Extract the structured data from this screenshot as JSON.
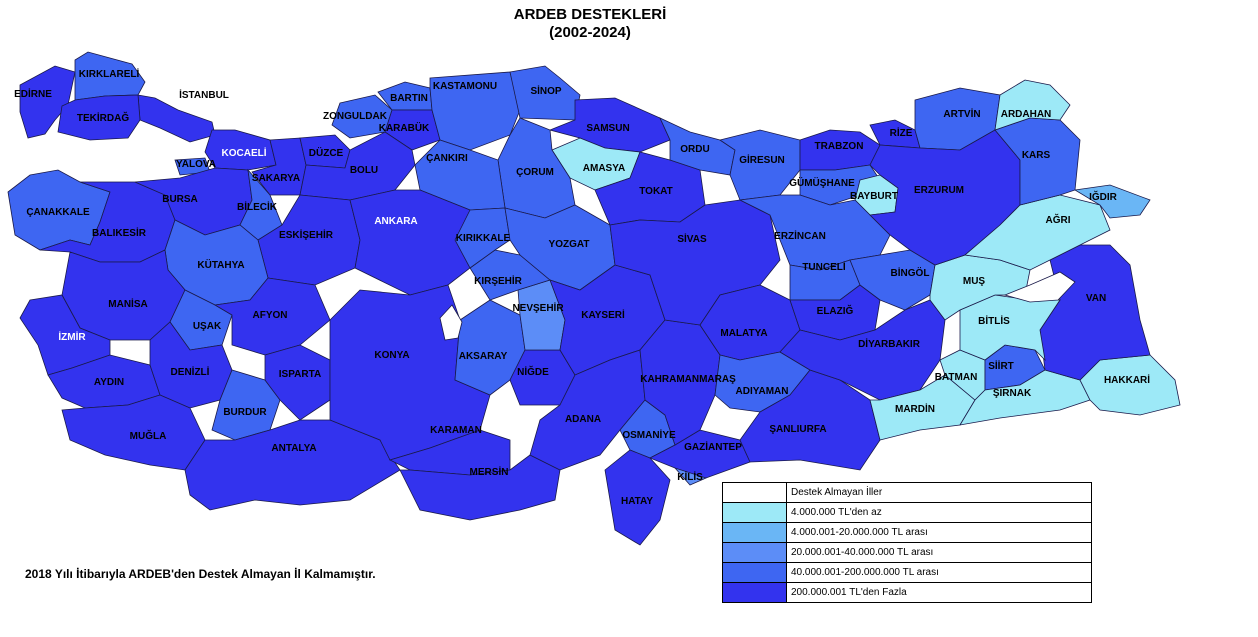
{
  "title": "ARDEB DESTEKLERİ",
  "subtitle": "(2002-2024)",
  "footnote": "2018 Yılı İtibarıyla ARDEB'den Destek Almayan İl Kalmamıştır.",
  "colors": {
    "none": "#ffffff",
    "c1": "#9de9f7",
    "c2": "#6ab6f5",
    "c3": "#5c8df7",
    "c4": "#3e66f2",
    "c5": "#3333ee",
    "border": "#1a1a4a"
  },
  "legend": [
    {
      "class": "none",
      "label": "Destek Almayan İller"
    },
    {
      "class": "c1",
      "label": "4.000.000 TL'den az"
    },
    {
      "class": "c2",
      "label": "4.000.001-20.000.000 TL arası"
    },
    {
      "class": "c3",
      "label": "20.000.001-40.000.000 TL arası"
    },
    {
      "class": "c4",
      "label": "40.000.001-200.000.000 TL arası"
    },
    {
      "class": "c5",
      "label": "200.000.001 TL'den Fazla"
    }
  ],
  "provinces": [
    {
      "name": "EDİRNE",
      "class": "c5"
    },
    {
      "name": "KIRKLARELİ",
      "class": "c4"
    },
    {
      "name": "İSTANBUL",
      "class": "c5"
    },
    {
      "name": "TEKİRDAĞ",
      "class": "c5"
    },
    {
      "name": "YALOVA",
      "class": "c4"
    },
    {
      "name": "KOCAELİ",
      "class": "c5"
    },
    {
      "name": "SAKARYA",
      "class": "c5"
    },
    {
      "name": "ZONGULDAK",
      "class": "c4"
    },
    {
      "name": "BARTIN",
      "class": "c4"
    },
    {
      "name": "KARABÜK",
      "class": "c5"
    },
    {
      "name": "KASTAMONU",
      "class": "c4"
    },
    {
      "name": "SİNOP",
      "class": "c4"
    },
    {
      "name": "SAMSUN",
      "class": "c5"
    },
    {
      "name": "AMASYA",
      "class": "c1"
    },
    {
      "name": "ÇORUM",
      "class": "c4"
    },
    {
      "name": "ÇANKIRI",
      "class": "c4"
    },
    {
      "name": "DÜZCE",
      "class": "c5"
    },
    {
      "name": "BOLU",
      "class": "c5"
    },
    {
      "name": "ÇANAKKALE",
      "class": "c4"
    },
    {
      "name": "BALIKESİR",
      "class": "c5"
    },
    {
      "name": "BURSA",
      "class": "c5"
    },
    {
      "name": "BİLECİK",
      "class": "c4"
    },
    {
      "name": "ESKİŞEHİR",
      "class": "c5"
    },
    {
      "name": "ANKARA",
      "class": "c5"
    },
    {
      "name": "KÜTAHYA",
      "class": "c4"
    },
    {
      "name": "MANİSA",
      "class": "c5"
    },
    {
      "name": "UŞAK",
      "class": "c4"
    },
    {
      "name": "AFYON",
      "class": "c5"
    },
    {
      "name": "İZMİR",
      "class": "c5"
    },
    {
      "name": "AYDIN",
      "class": "c5"
    },
    {
      "name": "DENİZLİ",
      "class": "c5"
    },
    {
      "name": "MUĞLA",
      "class": "c5"
    },
    {
      "name": "BURDUR",
      "class": "c4"
    },
    {
      "name": "ISPARTA",
      "class": "c5"
    },
    {
      "name": "ANTALYA",
      "class": "c5"
    },
    {
      "name": "KONYA",
      "class": "c5"
    },
    {
      "name": "KARAMAN",
      "class": "c5"
    },
    {
      "name": "AKSARAY",
      "class": "c4"
    },
    {
      "name": "NİĞDE",
      "class": "c5"
    },
    {
      "name": "NEVŞEHİR",
      "class": "c3"
    },
    {
      "name": "KIRŞEHİR",
      "class": "c4"
    },
    {
      "name": "KIRIKKALE",
      "class": "c4"
    },
    {
      "name": "YOZGAT",
      "class": "c4"
    },
    {
      "name": "KAYSERİ",
      "class": "c5"
    },
    {
      "name": "MERSİN",
      "class": "c5"
    },
    {
      "name": "ADANA",
      "class": "c5"
    },
    {
      "name": "OSMANİYE",
      "class": "c4"
    },
    {
      "name": "HATAY",
      "class": "c5"
    },
    {
      "name": "KİLİS",
      "class": "c3"
    },
    {
      "name": "GAZİANTEP",
      "class": "c5"
    },
    {
      "name": "KAHRAMANMARAŞ",
      "class": "c5"
    },
    {
      "name": "TOKAT",
      "class": "c5"
    },
    {
      "name": "SİVAS",
      "class": "c5"
    },
    {
      "name": "MALATYA",
      "class": "c5"
    },
    {
      "name": "ADIYAMAN",
      "class": "c4"
    },
    {
      "name": "ŞANLIURFA",
      "class": "c5"
    },
    {
      "name": "ORDU",
      "class": "c4"
    },
    {
      "name": "GİRESUN",
      "class": "c4"
    },
    {
      "name": "TRABZON",
      "class": "c5"
    },
    {
      "name": "RİZE",
      "class": "c5"
    },
    {
      "name": "ARTVİN",
      "class": "c4"
    },
    {
      "name": "GÜMÜŞHANE",
      "class": "c4"
    },
    {
      "name": "BAYBURT",
      "class": "c1"
    },
    {
      "name": "ERZİNCAN",
      "class": "c4"
    },
    {
      "name": "TUNCELİ",
      "class": "c4"
    },
    {
      "name": "ELAZIĞ",
      "class": "c5"
    },
    {
      "name": "BİNGÖL",
      "class": "c4"
    },
    {
      "name": "DİYARBAKIR",
      "class": "c5"
    },
    {
      "name": "MARDİN",
      "class": "c1"
    },
    {
      "name": "BATMAN",
      "class": "c1"
    },
    {
      "name": "SİİRT",
      "class": "c4"
    },
    {
      "name": "ŞIRNAK",
      "class": "c1"
    },
    {
      "name": "HAKKARİ",
      "class": "c1"
    },
    {
      "name": "VAN",
      "class": "c5"
    },
    {
      "name": "BİTLİS",
      "class": "c1"
    },
    {
      "name": "MUŞ",
      "class": "c1"
    },
    {
      "name": "ERZURUM",
      "class": "c5"
    },
    {
      "name": "AĞRI",
      "class": "c1"
    },
    {
      "name": "IĞDIR",
      "class": "c2"
    },
    {
      "name": "KARS",
      "class": "c4"
    },
    {
      "name": "ARDAHAN",
      "class": "c1"
    }
  ]
}
